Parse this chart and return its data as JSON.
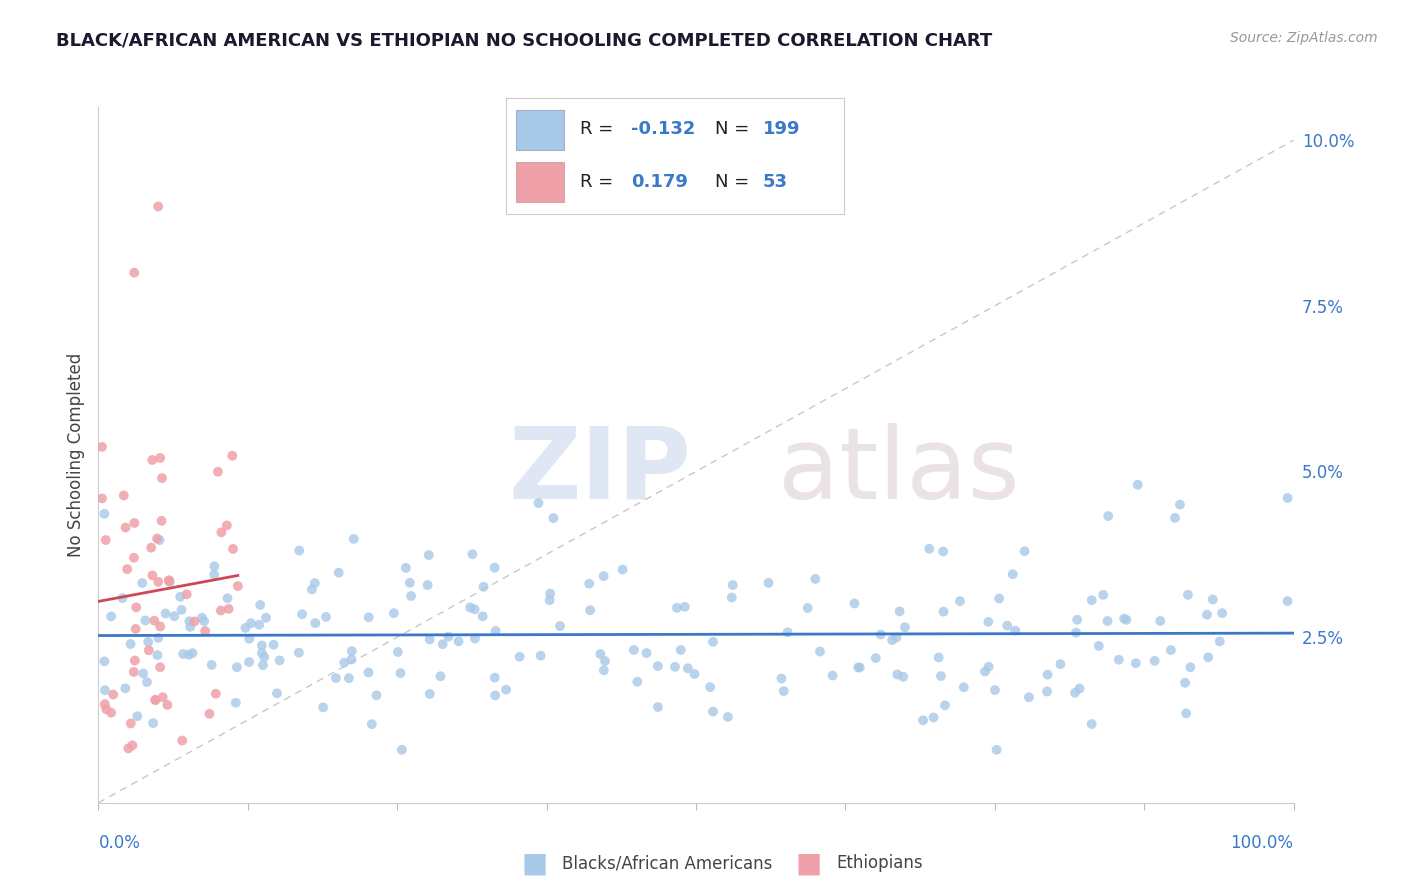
{
  "title": "BLACK/AFRICAN AMERICAN VS ETHIOPIAN NO SCHOOLING COMPLETED CORRELATION CHART",
  "source_text": "Source: ZipAtlas.com",
  "ylabel": "No Schooling Completed",
  "blue_color": "#A8C8E8",
  "pink_color": "#F0A0A8",
  "blue_line_color": "#3A78C8",
  "pink_line_color": "#D04858",
  "diag_line_color": "#C8C8C8",
  "legend_R_blue": "-0.132",
  "legend_N_blue": "199",
  "legend_R_pink": "0.179",
  "legend_N_pink": "53",
  "blue_R": -0.132,
  "pink_R": 0.179,
  "blue_N": 199,
  "pink_N": 53,
  "xlim": [
    0,
    100
  ],
  "ylim": [
    0,
    10.5
  ],
  "yticks": [
    2.5,
    5.0,
    7.5,
    10.0
  ],
  "yticklabels": [
    "2.5%",
    "5.0%",
    "7.5%",
    "10.0%"
  ],
  "watermark_zip_color": "#C8D8EC",
  "watermark_atlas_color": "#D8C8C8"
}
